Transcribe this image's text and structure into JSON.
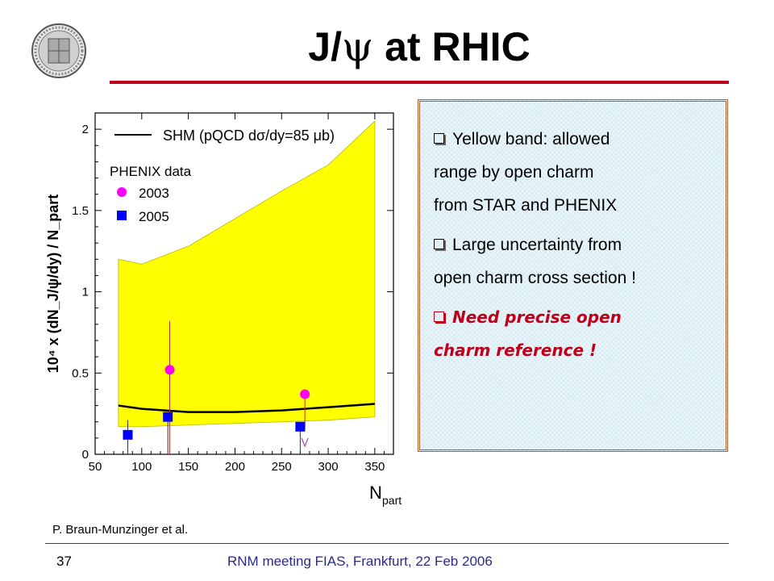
{
  "title": {
    "prefix": "J/",
    "psi": "ψ",
    "suffix": " at RHIC"
  },
  "credit": "P. Braun-Munzinger et al.",
  "footer": {
    "page": "37",
    "text": "RNM meeting FIAS, Frankfurt, 22 Feb 2006"
  },
  "colors": {
    "title_rule": "#c0001a",
    "band": "#ffff00",
    "marker_2003": "#ff00ff",
    "marker_2005": "#0000ff",
    "box_border": "#b06030"
  },
  "bullets": [
    {
      "lines": [
        "Yellow band:  allowed",
        "range by open charm",
        "from STAR and PHENIX"
      ],
      "style": "normal"
    },
    {
      "lines": [
        "Large uncertainty from",
        "open charm cross section !"
      ],
      "style": "normal"
    },
    {
      "lines": [
        "Need precise open",
        "charm reference !"
      ],
      "style": "red"
    }
  ],
  "chart_data": {
    "type": "line",
    "xlabel": "N",
    "xlabel_sub": "part",
    "ylabel": "10⁴ x (dN_J/ψ/dy) / N_part",
    "xlim": [
      50,
      370
    ],
    "ylim": [
      0,
      2.1
    ],
    "xticks": [
      "50",
      "100",
      "150",
      "200",
      "250",
      "300",
      "350"
    ],
    "yticks": [
      "0",
      "0.5",
      "1",
      "1.5",
      "2"
    ],
    "legend": {
      "line_label": "SHM (pQCD dσ/dy=85 μb)",
      "group_title": "PHENIX data",
      "entries": [
        "2003",
        "2005"
      ]
    },
    "band": {
      "x": [
        75,
        100,
        150,
        200,
        250,
        300,
        350
      ],
      "upper": [
        1.2,
        1.17,
        1.28,
        1.45,
        1.62,
        1.78,
        2.05
      ],
      "lower": [
        0.17,
        0.17,
        0.18,
        0.19,
        0.2,
        0.21,
        0.23
      ]
    },
    "series": [
      {
        "name": "SHM (pQCD dσ/dy=85 μb)",
        "x": [
          75,
          100,
          150,
          200,
          250,
          300,
          350
        ],
        "y": [
          0.3,
          0.28,
          0.26,
          0.26,
          0.27,
          0.29,
          0.31
        ]
      },
      {
        "name": "2003",
        "x": [
          130,
          275
        ],
        "y": [
          0.52,
          0.37
        ],
        "err_lo": [
          0.52,
          0.22
        ],
        "err_hi": [
          0.3,
          0.0
        ],
        "marker": "circle"
      },
      {
        "name": "2005",
        "x": [
          85,
          128,
          270
        ],
        "y": [
          0.12,
          0.23,
          0.17
        ],
        "err_lo": [
          0.12,
          0.23,
          0.17
        ],
        "err_hi": [
          0.09,
          0.0,
          0.0
        ],
        "marker": "square"
      }
    ]
  }
}
